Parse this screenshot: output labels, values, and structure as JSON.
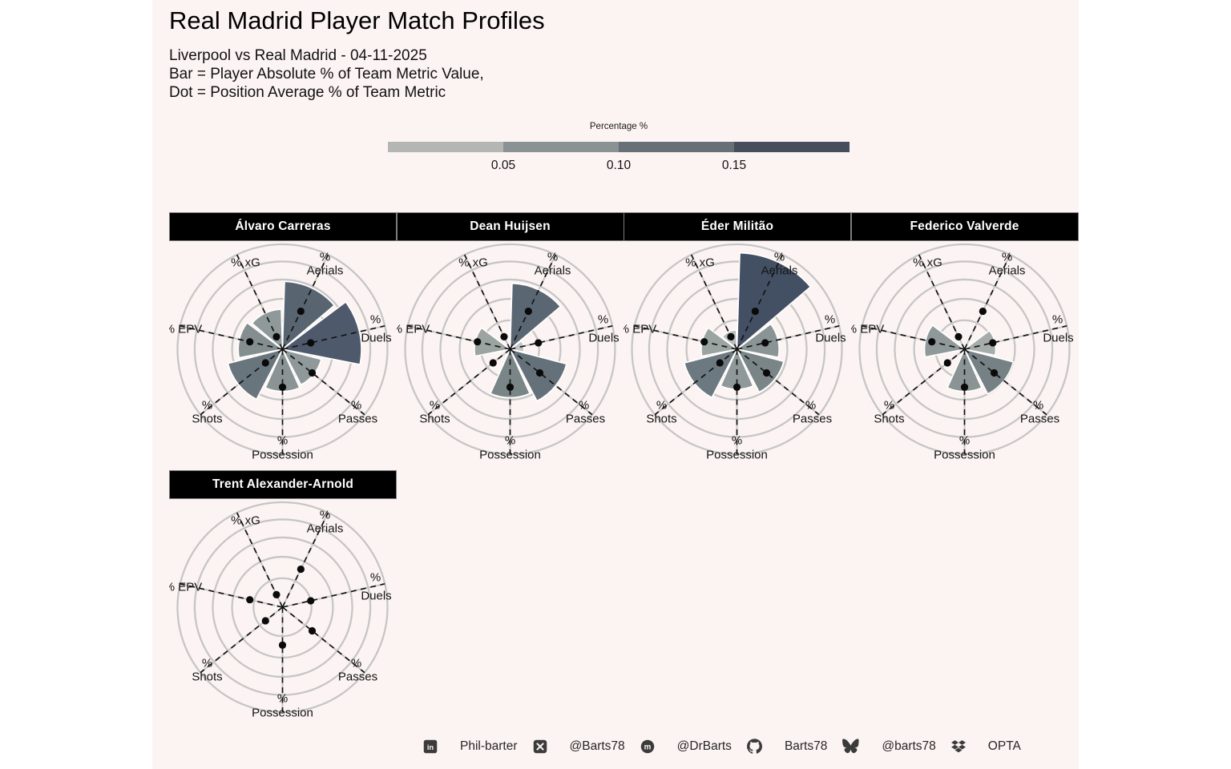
{
  "header": {
    "title": "Real Madrid Player Match Profiles",
    "subtitle_lines": [
      "Liverpool vs Real Madrid - 04-11-2025",
      "Bar = Player Absolute % of Team Metric Value,",
      "Dot = Position Average % of Team Metric"
    ]
  },
  "legend": {
    "title": "Percentage %",
    "ticks": [
      "0.05",
      "0.10",
      "0.15"
    ],
    "segment_colors": [
      "#b3b6b3",
      "#8a9293",
      "#667076",
      "#474e5b"
    ]
  },
  "chart_data": {
    "type": "bar",
    "subtype": "polar-rose",
    "note": "Bar = player absolute % of team metric value; dot = position average % of team metric",
    "axes": [
      {
        "key": "Aerials",
        "label_top": "%",
        "label": "Aerials"
      },
      {
        "key": "Duels",
        "label_top": "%",
        "label": "Duels"
      },
      {
        "key": "Passes",
        "label_top": "%",
        "label": "Passes"
      },
      {
        "key": "Possession",
        "label_top": "%",
        "label": "Possession"
      },
      {
        "key": "Shots",
        "label_top": "%",
        "label": "Shots"
      },
      {
        "key": "EPV",
        "label": "% EPV"
      },
      {
        "key": "xG",
        "label": "% xG"
      }
    ],
    "scale": {
      "max": 0.25,
      "rings": [
        0.05,
        0.1,
        0.15,
        0.2,
        0.25
      ],
      "power": 0.8
    },
    "position_avg_dots": [
      0.08,
      0.05,
      0.07,
      0.07,
      0.035,
      0.06,
      0.02
    ],
    "players": [
      {
        "name": "Álvaro Carreras",
        "values": [
          0.145,
          0.175,
          0.075,
          0.08,
          0.115,
          0.085,
          0.075
        ]
      },
      {
        "name": "Dean Huijsen",
        "values": [
          0.14,
          0.02,
          0.12,
          0.095,
          0,
          0.065,
          0
        ]
      },
      {
        "name": "Éder Militão",
        "values": [
          0.225,
          0.08,
          0.095,
          0.075,
          0.11,
          0.065,
          0.03
        ]
      },
      {
        "name": "Federico Valverde",
        "values": [
          0,
          0.055,
          0.1,
          0.08,
          0,
          0.075,
          0
        ]
      },
      {
        "name": "Trent Alexander-Arnold",
        "values": [
          0.003,
          0.004,
          0.004,
          0.005,
          0.003,
          0.008,
          0.002
        ]
      }
    ],
    "color_gradient": [
      {
        "v": 0.0,
        "c": "#d6d9d6"
      },
      {
        "v": 0.03,
        "c": "#b9bdba"
      },
      {
        "v": 0.06,
        "c": "#a2a9a7"
      },
      {
        "v": 0.09,
        "c": "#7e898b"
      },
      {
        "v": 0.12,
        "c": "#65717a"
      },
      {
        "v": 0.15,
        "c": "#55616e"
      },
      {
        "v": 0.19,
        "c": "#49556a"
      },
      {
        "v": 0.25,
        "c": "#3f4a5e"
      }
    ]
  },
  "footer": {
    "links": [
      {
        "icon": "linkedin-icon",
        "label": "Phil-barter"
      },
      {
        "icon": "x-icon",
        "label": "@Barts78"
      },
      {
        "icon": "mastodon-icon",
        "label": "@DrBarts"
      },
      {
        "icon": "github-icon",
        "label": "Barts78"
      },
      {
        "icon": "bluesky-icon",
        "label": "@barts78"
      },
      {
        "icon": "dropbox-icon",
        "label": "OPTA"
      }
    ]
  }
}
